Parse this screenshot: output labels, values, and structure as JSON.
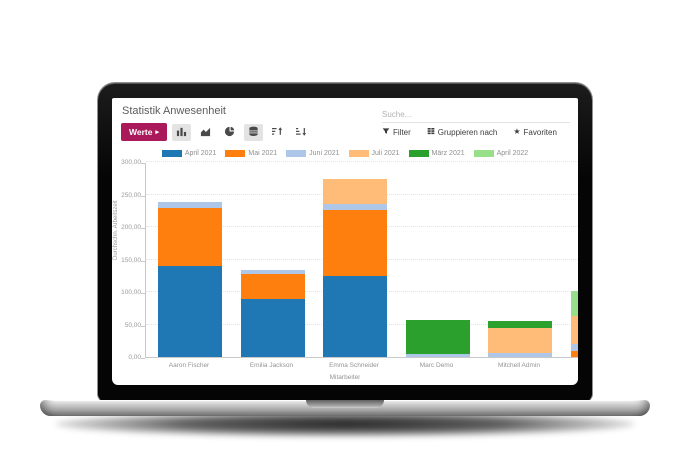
{
  "window": {
    "title": "Statistik Anwesenheit"
  },
  "search": {
    "placeholder": "Suche..."
  },
  "toolbar": {
    "measures_label": "Werte",
    "measures_caret": "▸",
    "filter_label": "Filter",
    "groupby_label": "Gruppieren nach",
    "favorites_label": "Favoriten",
    "star_glyph": "★"
  },
  "colors": {
    "accent": "#aa195a",
    "axis": "#c9c9c9"
  },
  "chart_data": {
    "type": "bar",
    "stacked": true,
    "title": "",
    "xlabel": "Mitarbeiter",
    "ylabel": "Durchschn. Arbeitszeit",
    "ylim": [
      0,
      300
    ],
    "grid": true,
    "legend_position": "top",
    "yticks": [
      0,
      50,
      100,
      150,
      200,
      250,
      300
    ],
    "ytick_labels": [
      "0,00",
      "50,00",
      "100,00",
      "150,00",
      "200,00",
      "250,00",
      "300,00"
    ],
    "categories": [
      "Aaron Fischer",
      "Emilia Jackson",
      "Emma Schneider",
      "Marc Demo",
      "Mitchell Admin",
      ""
    ],
    "series": [
      {
        "name": "April 2021",
        "color": "#1f77b4",
        "values": [
          140,
          90,
          125,
          0,
          0,
          0
        ]
      },
      {
        "name": "Mai 2021",
        "color": "#ff7f0e",
        "values": [
          90,
          37,
          101,
          0,
          0,
          9
        ]
      },
      {
        "name": "Juni 2021",
        "color": "#aec7e8",
        "values": [
          8,
          7,
          10,
          5,
          6,
          11
        ]
      },
      {
        "name": "Juli 2021",
        "color": "#ffbb78",
        "values": [
          0,
          0,
          38,
          0,
          39,
          43
        ]
      },
      {
        "name": "März 2021",
        "color": "#2ca02c",
        "values": [
          0,
          0,
          0,
          52,
          10,
          0
        ]
      },
      {
        "name": "April 2022",
        "color": "#98df8a",
        "values": [
          0,
          0,
          0,
          0,
          0,
          39
        ]
      }
    ]
  }
}
